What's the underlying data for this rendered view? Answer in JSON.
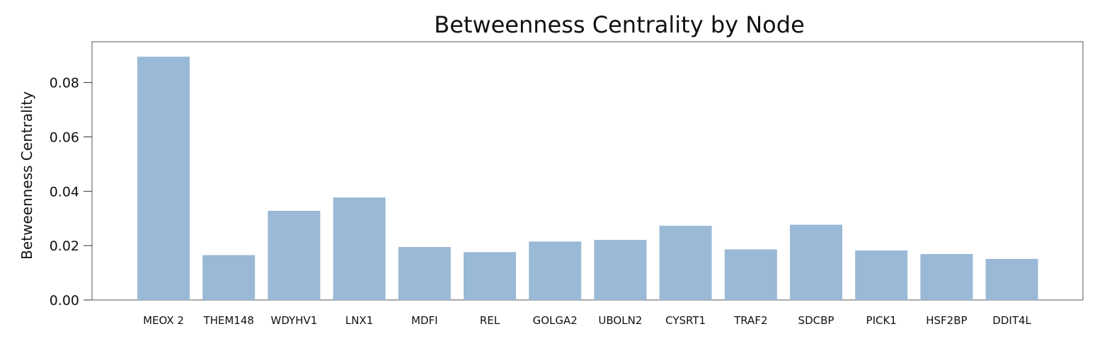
{
  "chart_data": {
    "type": "bar",
    "title": "Betweenness Centrality by Node",
    "xlabel": "",
    "ylabel": "Betweenness Centrality",
    "ylim": [
      0,
      0.095
    ],
    "yticks": [
      0.0,
      0.02,
      0.04,
      0.06,
      0.08
    ],
    "ytick_labels": [
      "0.00",
      "0.02",
      "0.04",
      "0.06",
      "0.08"
    ],
    "grid": false,
    "bar_color": "#9ab9d6",
    "categories": [
      "MEOX 2",
      "THEM148",
      "WDYHV1",
      "LNX1",
      "MDFI",
      "REL",
      "GOLGA2",
      "UBOLN2",
      "CYSRT1",
      "TRAF2",
      "SDCBP",
      "PICK1",
      "HSF2BP",
      "DDIT4L"
    ],
    "values": [
      0.0895,
      0.0165,
      0.0328,
      0.0377,
      0.0195,
      0.0176,
      0.0215,
      0.0221,
      0.0273,
      0.0186,
      0.0277,
      0.0182,
      0.0169,
      0.0151
    ]
  }
}
